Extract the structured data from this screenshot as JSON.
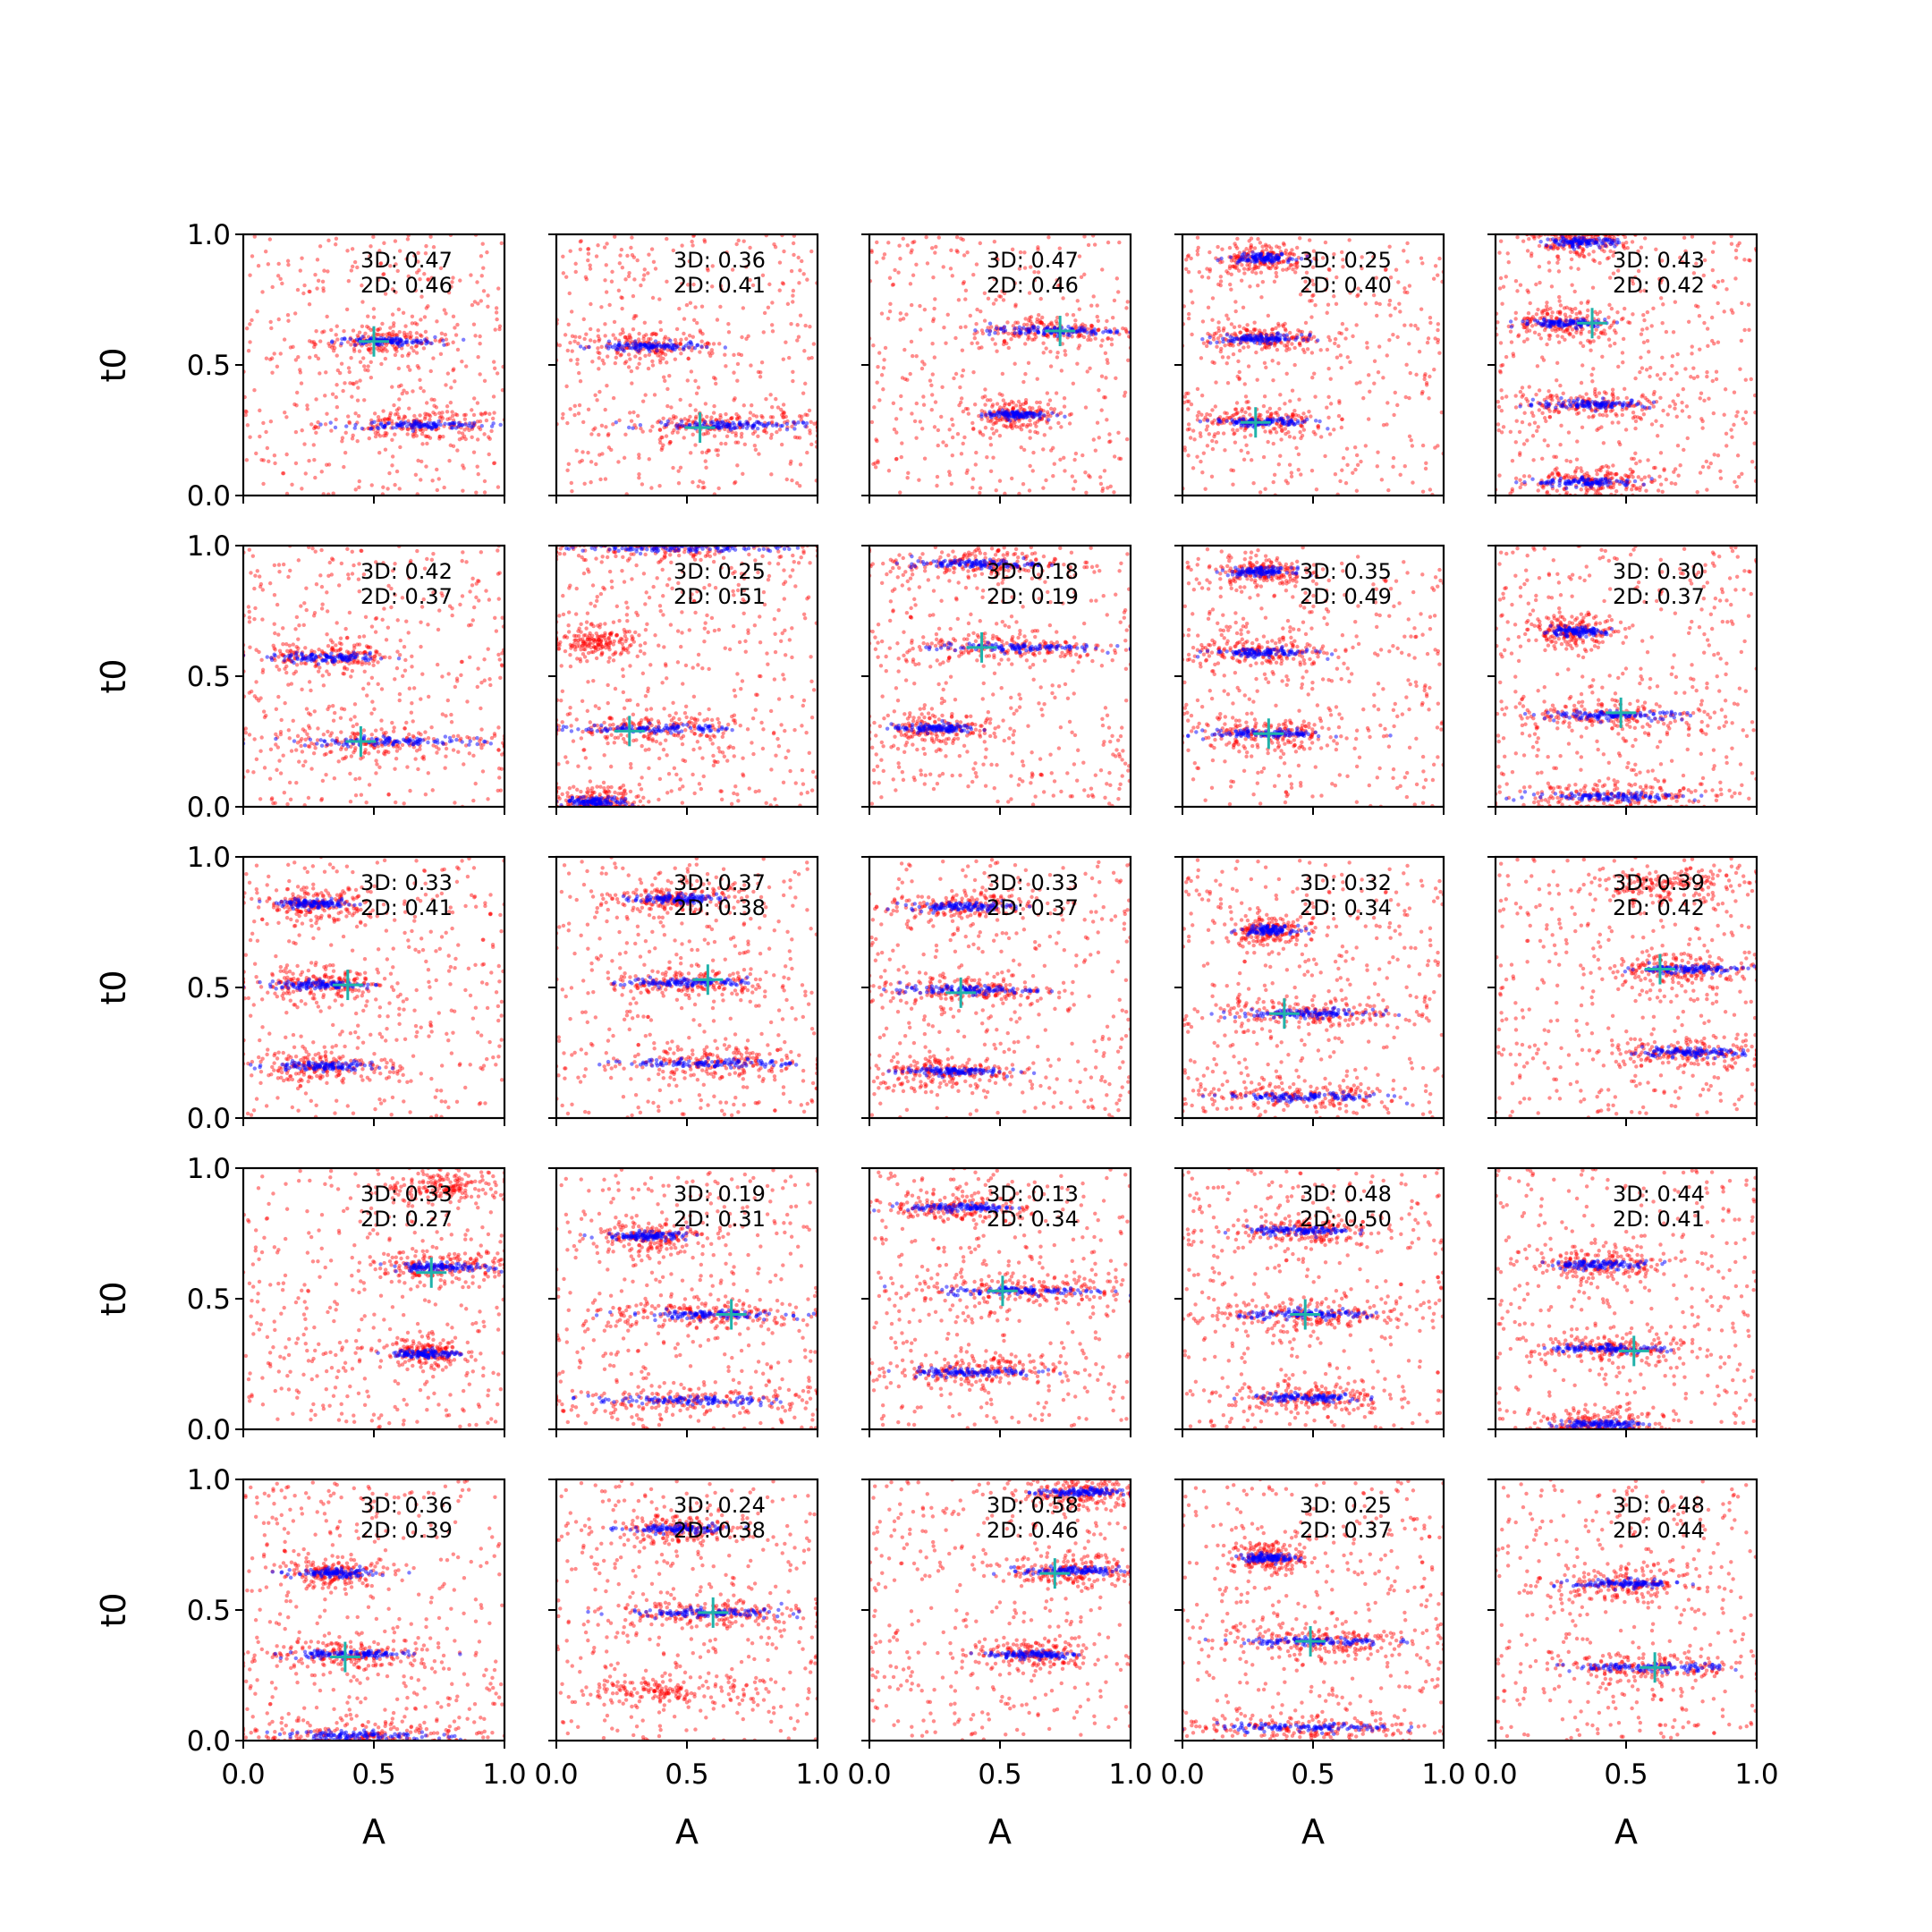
{
  "chart_data": {
    "type": "scatter",
    "layout": "5x5 grid of small-multiple scatter panels, shared axes",
    "xlabel": "A",
    "ylabel": "t0",
    "xlim": [
      0.0,
      1.0
    ],
    "ylim": [
      0.0,
      1.0
    ],
    "xticks": [
      "0.0",
      "0.5",
      "1.0"
    ],
    "yticks": [
      "0.0",
      "0.5",
      "1.0"
    ],
    "series_colors": {
      "red_points": "#ff0000",
      "blue_points": "#0000ff",
      "marker": "#20b2aa"
    },
    "panels": [
      {
        "ann3d": "3D: 0.47",
        "ann2d": "2D: 0.46",
        "marker": [
          0.5,
          0.59
        ],
        "bands": [
          {
            "y": 0.59,
            "xmin": 0.3,
            "xmax": 0.78,
            "blue": true
          },
          {
            "y": 0.27,
            "xmin": 0.35,
            "xmax": 1.0,
            "blue": true
          }
        ]
      },
      {
        "ann3d": "3D: 0.36",
        "ann2d": "2D: 0.41",
        "marker": [
          0.55,
          0.26
        ],
        "bands": [
          {
            "y": 0.57,
            "xmin": 0.1,
            "xmax": 0.6,
            "blue": true
          },
          {
            "y": 0.27,
            "xmin": 0.3,
            "xmax": 1.0,
            "blue": true
          }
        ]
      },
      {
        "ann3d": "3D: 0.47",
        "ann2d": "2D: 0.46",
        "marker": [
          0.73,
          0.63
        ],
        "bands": [
          {
            "y": 0.63,
            "xmin": 0.4,
            "xmax": 1.0,
            "blue": true
          },
          {
            "y": 0.31,
            "xmin": 0.4,
            "xmax": 0.7,
            "blue": true
          }
        ]
      },
      {
        "ann3d": "3D: 0.25",
        "ann2d": "2D: 0.40",
        "marker": [
          0.28,
          0.28
        ],
        "bands": [
          {
            "y": 0.91,
            "xmin": 0.15,
            "xmax": 0.45,
            "blue": true
          },
          {
            "y": 0.6,
            "xmin": 0.1,
            "xmax": 0.5,
            "blue": true
          },
          {
            "y": 0.28,
            "xmin": 0.05,
            "xmax": 0.55,
            "blue": true
          }
        ]
      },
      {
        "ann3d": "3D: 0.43",
        "ann2d": "2D: 0.42",
        "marker": [
          0.37,
          0.66
        ],
        "bands": [
          {
            "y": 0.97,
            "xmin": 0.15,
            "xmax": 0.5,
            "blue": true
          },
          {
            "y": 0.66,
            "xmin": 0.05,
            "xmax": 0.5,
            "blue": true
          },
          {
            "y": 0.35,
            "xmin": 0.1,
            "xmax": 0.65,
            "blue": true
          },
          {
            "y": 0.05,
            "xmin": 0.1,
            "xmax": 0.6,
            "blue": true
          }
        ]
      },
      {
        "ann3d": "3D: 0.42",
        "ann2d": "2D: 0.37",
        "marker": [
          0.45,
          0.25
        ],
        "bands": [
          {
            "y": 0.57,
            "xmin": 0.05,
            "xmax": 0.6,
            "blue": true
          },
          {
            "y": 0.25,
            "xmin": 0.1,
            "xmax": 1.0,
            "blue": true
          }
        ]
      },
      {
        "ann3d": "3D: 0.25",
        "ann2d": "2D: 0.51",
        "marker": [
          0.28,
          0.29
        ],
        "bands": [
          {
            "y": 0.99,
            "xmin": 0.0,
            "xmax": 1.0,
            "blue": true
          },
          {
            "y": 0.63,
            "xmin": 0.0,
            "xmax": 0.3,
            "blue": false
          },
          {
            "y": 0.3,
            "xmin": 0.0,
            "xmax": 0.75,
            "blue": true
          },
          {
            "y": 0.02,
            "xmin": 0.0,
            "xmax": 0.3,
            "blue": true
          }
        ]
      },
      {
        "ann3d": "3D: 0.18",
        "ann2d": "2D: 0.19",
        "marker": [
          0.43,
          0.61
        ],
        "bands": [
          {
            "y": 0.93,
            "xmin": 0.1,
            "xmax": 0.7,
            "blue": true
          },
          {
            "y": 0.61,
            "xmin": 0.15,
            "xmax": 0.95,
            "blue": true
          },
          {
            "y": 0.3,
            "xmin": 0.05,
            "xmax": 0.45,
            "blue": true
          }
        ]
      },
      {
        "ann3d": "3D: 0.35",
        "ann2d": "2D: 0.49",
        "marker": [
          0.33,
          0.28
        ],
        "bands": [
          {
            "y": 0.9,
            "xmin": 0.15,
            "xmax": 0.45,
            "blue": true
          },
          {
            "y": 0.59,
            "xmin": 0.05,
            "xmax": 0.55,
            "blue": true
          },
          {
            "y": 0.28,
            "xmin": 0.05,
            "xmax": 0.6,
            "blue": true
          }
        ]
      },
      {
        "ann3d": "3D: 0.30",
        "ann2d": "2D: 0.37",
        "marker": [
          0.48,
          0.36
        ],
        "bands": [
          {
            "y": 0.67,
            "xmin": 0.15,
            "xmax": 0.45,
            "blue": true
          },
          {
            "y": 0.35,
            "xmin": 0.1,
            "xmax": 0.8,
            "blue": true
          },
          {
            "y": 0.04,
            "xmin": 0.05,
            "xmax": 0.85,
            "blue": true
          }
        ]
      },
      {
        "ann3d": "3D: 0.33",
        "ann2d": "2D: 0.41",
        "marker": [
          0.4,
          0.51
        ],
        "bands": [
          {
            "y": 0.82,
            "xmin": 0.1,
            "xmax": 0.45,
            "blue": true
          },
          {
            "y": 0.51,
            "xmin": 0.05,
            "xmax": 0.55,
            "blue": true
          },
          {
            "y": 0.2,
            "xmin": 0.05,
            "xmax": 0.55,
            "blue": true
          }
        ]
      },
      {
        "ann3d": "3D: 0.37",
        "ann2d": "2D: 0.38",
        "marker": [
          0.58,
          0.53
        ],
        "bands": [
          {
            "y": 0.84,
            "xmin": 0.25,
            "xmax": 0.65,
            "blue": true
          },
          {
            "y": 0.52,
            "xmin": 0.2,
            "xmax": 0.8,
            "blue": true
          },
          {
            "y": 0.21,
            "xmin": 0.2,
            "xmax": 1.0,
            "blue": true
          }
        ]
      },
      {
        "ann3d": "3D: 0.33",
        "ann2d": "2D: 0.37",
        "marker": [
          0.35,
          0.48
        ],
        "bands": [
          {
            "y": 0.81,
            "xmin": 0.1,
            "xmax": 0.6,
            "blue": true
          },
          {
            "y": 0.49,
            "xmin": 0.05,
            "xmax": 0.7,
            "blue": true
          },
          {
            "y": 0.18,
            "xmin": 0.05,
            "xmax": 0.55,
            "blue": true
          }
        ]
      },
      {
        "ann3d": "3D: 0.32",
        "ann2d": "2D: 0.34",
        "marker": [
          0.39,
          0.4
        ],
        "bands": [
          {
            "y": 0.72,
            "xmin": 0.2,
            "xmax": 0.45,
            "blue": true
          },
          {
            "y": 0.4,
            "xmin": 0.15,
            "xmax": 0.8,
            "blue": true
          },
          {
            "y": 0.08,
            "xmin": 0.05,
            "xmax": 0.85,
            "blue": true
          }
        ]
      },
      {
        "ann3d": "3D: 0.39",
        "ann2d": "2D: 0.42",
        "marker": [
          0.63,
          0.57
        ],
        "bands": [
          {
            "y": 0.89,
            "xmin": 0.4,
            "xmax": 0.9,
            "blue": false
          },
          {
            "y": 0.57,
            "xmin": 0.45,
            "xmax": 1.0,
            "blue": true
          },
          {
            "y": 0.25,
            "xmin": 0.45,
            "xmax": 1.0,
            "blue": true
          }
        ]
      },
      {
        "ann3d": "3D: 0.33",
        "ann2d": "2D: 0.27",
        "marker": [
          0.72,
          0.6
        ],
        "bands": [
          {
            "y": 0.93,
            "xmin": 0.55,
            "xmax": 1.0,
            "blue": false
          },
          {
            "y": 0.62,
            "xmin": 0.5,
            "xmax": 1.0,
            "blue": true
          },
          {
            "y": 0.29,
            "xmin": 0.55,
            "xmax": 0.85,
            "blue": true
          }
        ]
      },
      {
        "ann3d": "3D: 0.19",
        "ann2d": "2D: 0.31",
        "marker": [
          0.67,
          0.44
        ],
        "bands": [
          {
            "y": 0.74,
            "xmin": 0.15,
            "xmax": 0.55,
            "blue": true
          },
          {
            "y": 0.44,
            "xmin": 0.2,
            "xmax": 0.95,
            "blue": true
          },
          {
            "y": 0.11,
            "xmin": 0.05,
            "xmax": 0.95,
            "blue": true
          }
        ]
      },
      {
        "ann3d": "3D: 0.13",
        "ann2d": "2D: 0.34",
        "marker": [
          0.51,
          0.53
        ],
        "bands": [
          {
            "y": 0.85,
            "xmin": 0.1,
            "xmax": 0.6,
            "blue": true
          },
          {
            "y": 0.53,
            "xmin": 0.2,
            "xmax": 1.0,
            "blue": true
          },
          {
            "y": 0.22,
            "xmin": 0.05,
            "xmax": 0.7,
            "blue": true
          }
        ]
      },
      {
        "ann3d": "3D: 0.48",
        "ann2d": "2D: 0.50",
        "marker": [
          0.47,
          0.44
        ],
        "bands": [
          {
            "y": 0.76,
            "xmin": 0.2,
            "xmax": 0.7,
            "blue": true
          },
          {
            "y": 0.44,
            "xmin": 0.15,
            "xmax": 0.85,
            "blue": true
          },
          {
            "y": 0.12,
            "xmin": 0.2,
            "xmax": 0.75,
            "blue": true
          }
        ]
      },
      {
        "ann3d": "3D: 0.44",
        "ann2d": "2D: 0.41",
        "marker": [
          0.53,
          0.3
        ],
        "bands": [
          {
            "y": 0.63,
            "xmin": 0.15,
            "xmax": 0.65,
            "blue": true
          },
          {
            "y": 0.31,
            "xmin": 0.15,
            "xmax": 0.7,
            "blue": true
          },
          {
            "y": 0.02,
            "xmin": 0.2,
            "xmax": 0.6,
            "blue": true
          }
        ]
      },
      {
        "ann3d": "3D: 0.36",
        "ann2d": "2D: 0.39",
        "marker": [
          0.39,
          0.32
        ],
        "bands": [
          {
            "y": 0.64,
            "xmin": 0.15,
            "xmax": 0.55,
            "blue": true
          },
          {
            "y": 0.33,
            "xmin": 0.1,
            "xmax": 0.7,
            "blue": true
          },
          {
            "y": 0.02,
            "xmin": 0.05,
            "xmax": 0.85,
            "blue": true
          }
        ]
      },
      {
        "ann3d": "3D: 0.24",
        "ann2d": "2D: 0.38",
        "marker": [
          0.6,
          0.49
        ],
        "bands": [
          {
            "y": 0.81,
            "xmin": 0.2,
            "xmax": 0.7,
            "blue": true
          },
          {
            "y": 0.49,
            "xmin": 0.2,
            "xmax": 0.95,
            "blue": true
          },
          {
            "y": 0.19,
            "xmin": 0.15,
            "xmax": 0.75,
            "blue": false
          }
        ]
      },
      {
        "ann3d": "3D: 0.58",
        "ann2d": "2D: 0.46",
        "marker": [
          0.71,
          0.64
        ],
        "bands": [
          {
            "y": 0.95,
            "xmin": 0.6,
            "xmax": 1.0,
            "blue": true
          },
          {
            "y": 0.65,
            "xmin": 0.55,
            "xmax": 1.0,
            "blue": true
          },
          {
            "y": 0.33,
            "xmin": 0.4,
            "xmax": 0.85,
            "blue": true
          }
        ]
      },
      {
        "ann3d": "3D: 0.25",
        "ann2d": "2D: 0.37",
        "marker": [
          0.49,
          0.38
        ],
        "bands": [
          {
            "y": 0.7,
            "xmin": 0.2,
            "xmax": 0.45,
            "blue": true
          },
          {
            "y": 0.38,
            "xmin": 0.15,
            "xmax": 0.85,
            "blue": true
          },
          {
            "y": 0.05,
            "xmin": 0.05,
            "xmax": 0.9,
            "blue": true
          }
        ]
      },
      {
        "ann3d": "3D: 0.48",
        "ann2d": "2D: 0.44",
        "marker": [
          0.61,
          0.28
        ],
        "bands": [
          {
            "y": 0.6,
            "xmin": 0.25,
            "xmax": 0.75,
            "blue": true
          },
          {
            "y": 0.28,
            "xmin": 0.2,
            "xmax": 0.95,
            "blue": true
          }
        ]
      }
    ]
  }
}
